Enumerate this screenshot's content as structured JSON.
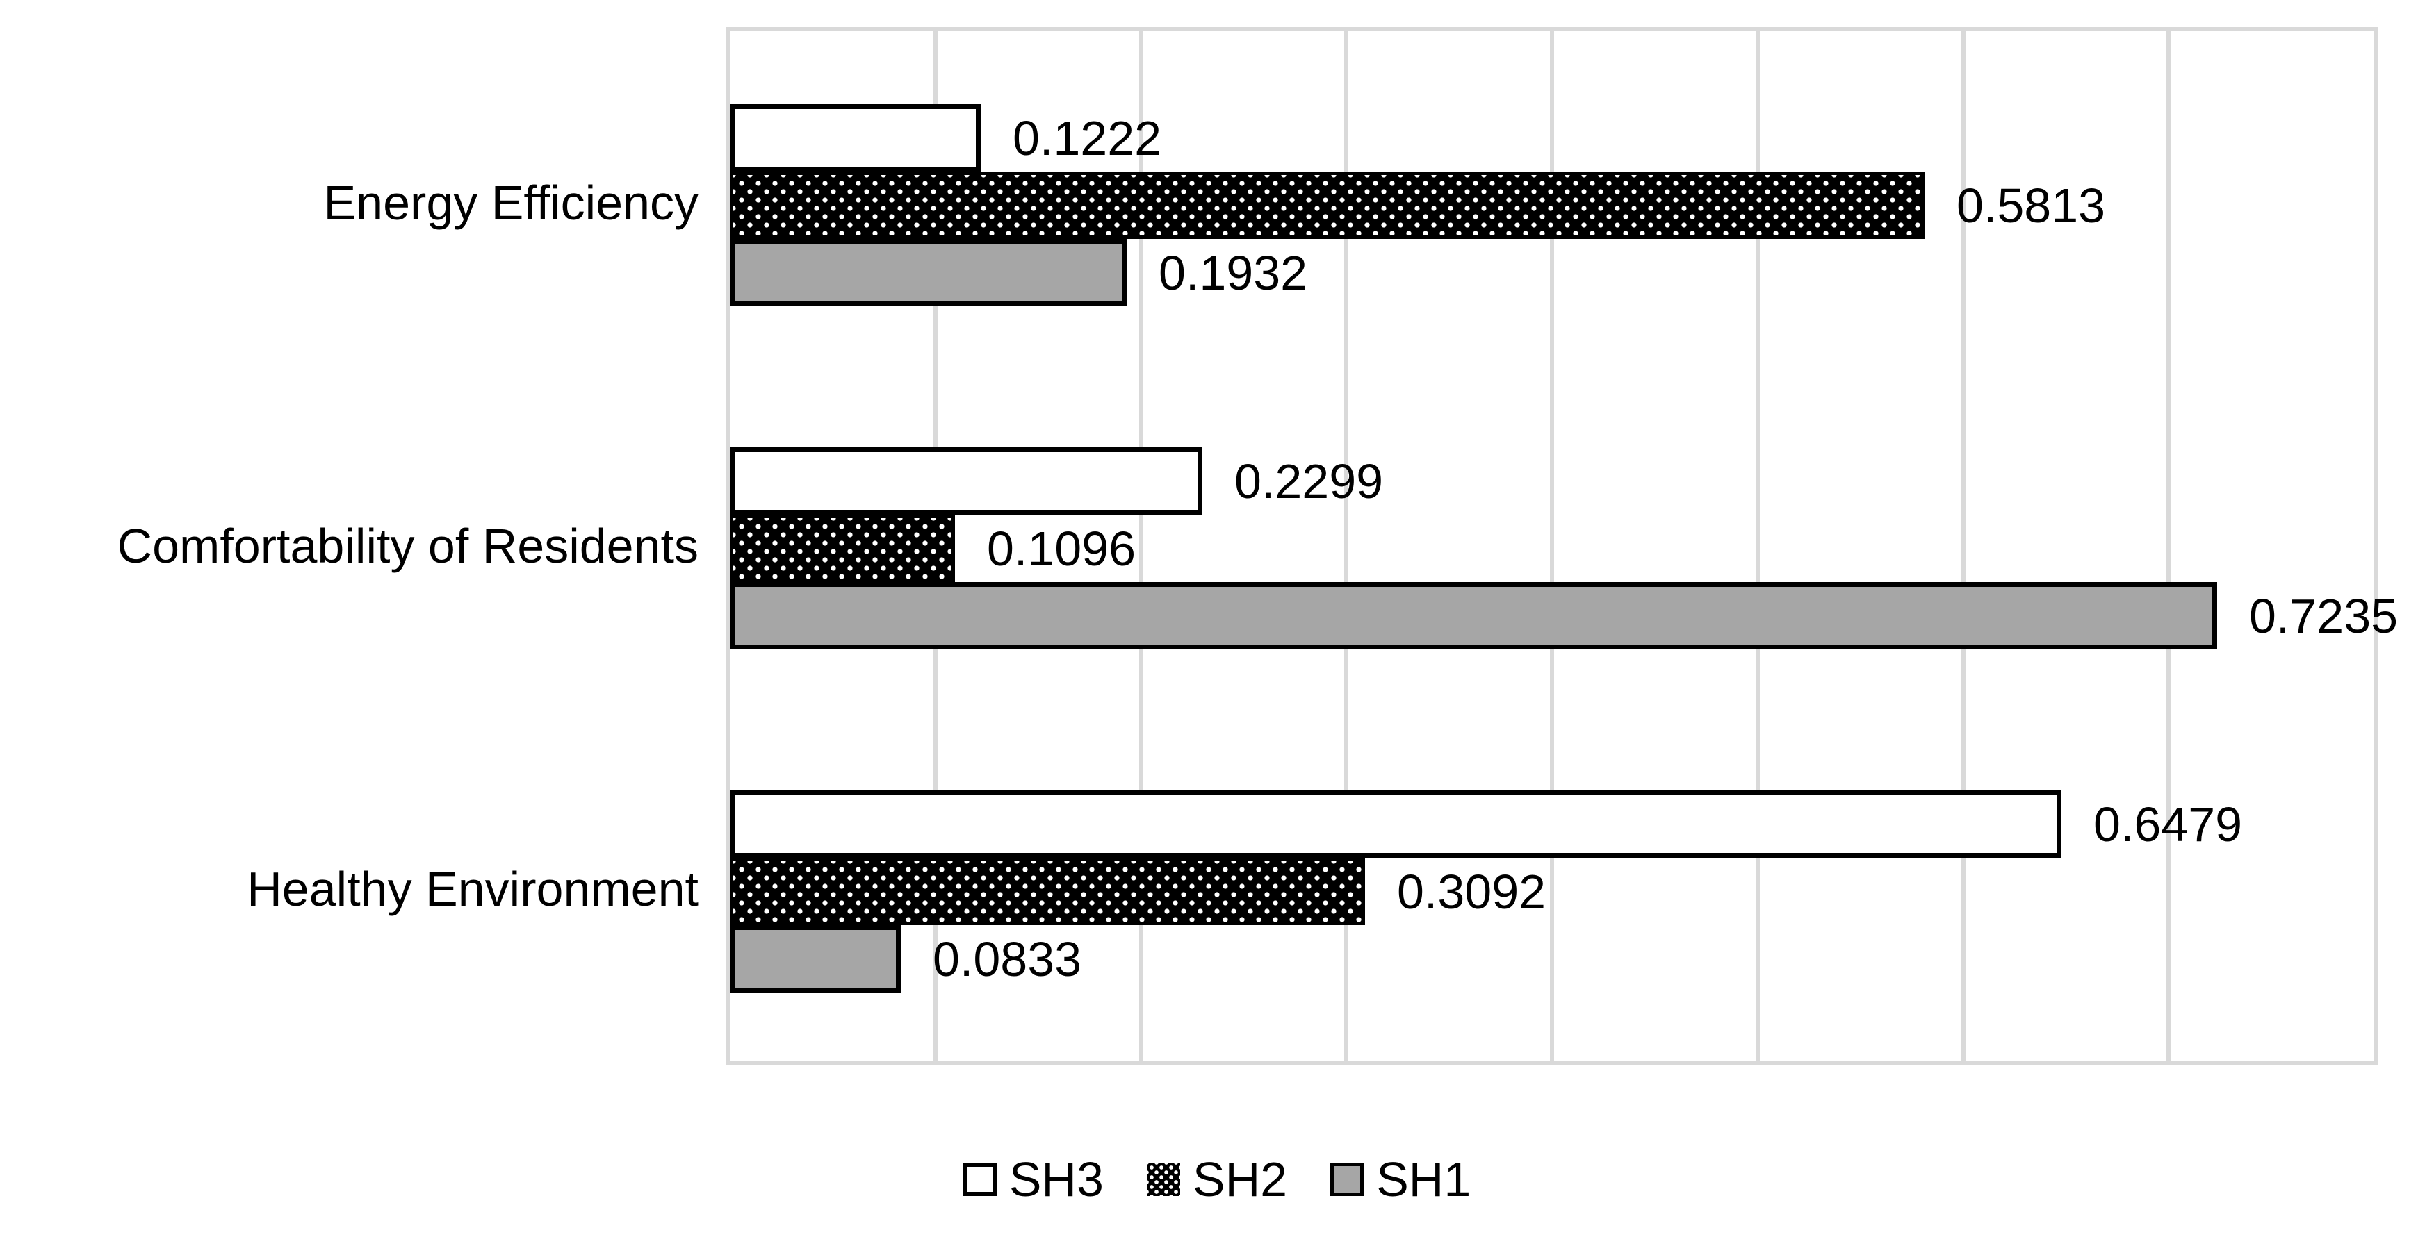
{
  "chart_data": {
    "type": "bar",
    "orientation": "horizontal",
    "title": "",
    "categories": [
      "Energy Efficiency",
      "Comfortability of Residents",
      "Healthy Environment"
    ],
    "series": [
      {
        "name": "SH3",
        "fill": "#ffffff",
        "pattern": "solid",
        "values": [
          0.1222,
          0.2299,
          0.6479
        ],
        "labels": [
          "0.1222",
          "0.2299",
          "0.6479"
        ]
      },
      {
        "name": "SH2",
        "fill": "white-dots-on-black",
        "pattern": "dots",
        "values": [
          0.5813,
          0.1096,
          0.3092
        ],
        "labels": [
          "0.5813",
          "0.1096",
          "0.3092"
        ]
      },
      {
        "name": "SH1",
        "fill": "#a6a6a6",
        "pattern": "solid",
        "values": [
          0.1932,
          0.7235,
          0.0833
        ],
        "labels": [
          "0.1932",
          "0.7235",
          "0.0833"
        ]
      }
    ],
    "xlim": [
      0,
      0.8
    ],
    "gridline_step": 0.1,
    "grid": true,
    "axis_tick_labels_visible": false,
    "legend_position": "bottom",
    "legend_order": [
      "SH3",
      "SH2",
      "SH1"
    ]
  },
  "colors": {
    "background": "#ffffff",
    "bar_outline": "#000000",
    "sh3_fill": "#ffffff",
    "sh1_fill": "#a6a6a6",
    "pattern_fg": "#ffffff",
    "pattern_bg": "#000000",
    "gridline": "#d9d9d9",
    "plot_border": "#d9d9d9",
    "text": "#000000"
  }
}
